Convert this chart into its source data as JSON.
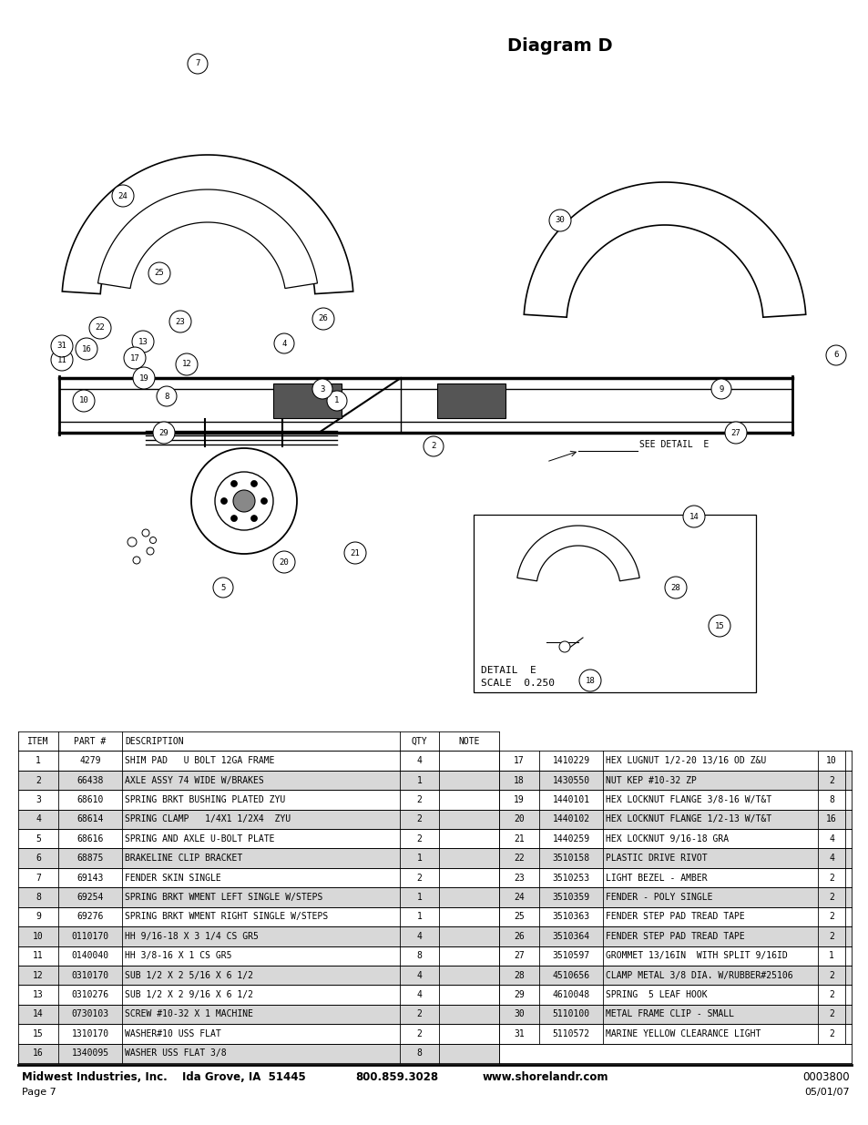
{
  "title": "Diagram D",
  "table_header": [
    "ITEM",
    "PART #",
    "DESCRIPTION",
    "QTY",
    "NOTE"
  ],
  "table_left": [
    [
      "1",
      "4279",
      "SHIM PAD   U BOLT 12GA FRAME",
      "4",
      ""
    ],
    [
      "2",
      "66438",
      "AXLE ASSY 74 WIDE W/BRAKES",
      "1",
      ""
    ],
    [
      "3",
      "68610",
      "SPRING BRKT BUSHING PLATED ZYU",
      "2",
      ""
    ],
    [
      "4",
      "68614",
      "SPRING CLAMP   1/4X1 1/2X4  ZYU",
      "2",
      ""
    ],
    [
      "5",
      "68616",
      "SPRING AND AXLE U-BOLT PLATE",
      "2",
      ""
    ],
    [
      "6",
      "68875",
      "BRAKELINE CLIP BRACKET",
      "1",
      ""
    ],
    [
      "7",
      "69143",
      "FENDER SKIN SINGLE",
      "2",
      ""
    ],
    [
      "8",
      "69254",
      "SPRING BRKT WMENT LEFT SINGLE W/STEPS",
      "1",
      ""
    ],
    [
      "9",
      "69276",
      "SPRING BRKT WMENT RIGHT SINGLE W/STEPS",
      "1",
      ""
    ],
    [
      "10",
      "0110170",
      "HH 9/16-18 X 3 1/4 CS GR5",
      "4",
      ""
    ],
    [
      "11",
      "0140040",
      "HH 3/8-16 X 1 CS GR5",
      "8",
      ""
    ],
    [
      "12",
      "0310170",
      "SUB 1/2 X 2 5/16 X 6 1/2",
      "4",
      ""
    ],
    [
      "13",
      "0310276",
      "SUB 1/2 X 2 9/16 X 6 1/2",
      "4",
      ""
    ],
    [
      "14",
      "0730103",
      "SCREW #10-32 X 1 MACHINE",
      "2",
      ""
    ],
    [
      "15",
      "1310170",
      "WASHER#10 USS FLAT",
      "2",
      ""
    ],
    [
      "16",
      "1340095",
      "WASHER USS FLAT 3/8",
      "8",
      ""
    ]
  ],
  "table_right": [
    [
      "17",
      "1410229",
      "HEX LUGNUT 1/2-20 13/16 OD Z&U",
      "10",
      ""
    ],
    [
      "18",
      "1430550",
      "NUT KEP #10-32 ZP",
      "2",
      ""
    ],
    [
      "19",
      "1440101",
      "HEX LOCKNUT FLANGE 3/8-16 W/T&T",
      "8",
      ""
    ],
    [
      "20",
      "1440102",
      "HEX LOCKNUT FLANGE 1/2-13 W/T&T",
      "16",
      ""
    ],
    [
      "21",
      "1440259",
      "HEX LOCKNUT 9/16-18 GRA",
      "4",
      ""
    ],
    [
      "22",
      "3510158",
      "PLASTIC DRIVE RIVOT",
      "4",
      ""
    ],
    [
      "23",
      "3510253",
      "LIGHT BEZEL - AMBER",
      "2",
      ""
    ],
    [
      "24",
      "3510359",
      "FENDER - POLY SINGLE",
      "2",
      ""
    ],
    [
      "25",
      "3510363",
      "FENDER STEP PAD TREAD TAPE",
      "2",
      ""
    ],
    [
      "26",
      "3510364",
      "FENDER STEP PAD TREAD TAPE",
      "2",
      ""
    ],
    [
      "27",
      "3510597",
      "GROMMET 13/16IN  WITH SPLIT 9/16ID",
      "1",
      ""
    ],
    [
      "28",
      "4510656",
      "CLAMP METAL 3/8 DIA. W/RUBBER#25106",
      "2",
      ""
    ],
    [
      "29",
      "4610048",
      "SPRING  5 LEAF HOOK",
      "2",
      ""
    ],
    [
      "30",
      "5110100",
      "METAL FRAME CLIP - SMALL",
      "2",
      ""
    ],
    [
      "31",
      "5110572",
      "MARINE YELLOW CLEARANCE LIGHT",
      "2",
      ""
    ]
  ],
  "footer_company": "Midwest Industries, Inc.",
  "footer_city": "Ida Grove, IA  51445",
  "footer_phone": "800.859.3028",
  "footer_web": "www.shorelandr.com",
  "footer_part_num": "0003800",
  "footer_page": "Page 7",
  "footer_date": "05/01/07",
  "bg_color": "#ffffff",
  "table_font_size": 7.0,
  "detail_e_line1": "DETAIL  E",
  "detail_e_line2": "SCALE  0.250",
  "see_detail_e": "SEE DETAIL  E"
}
